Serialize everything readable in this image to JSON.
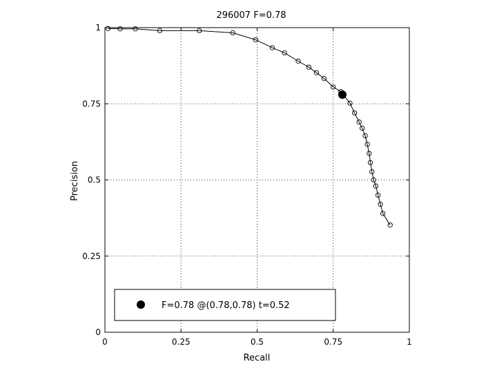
{
  "chart_data": {
    "type": "line",
    "title": "296007 F=0.78",
    "xlabel": "Recall",
    "ylabel": "Precision",
    "xlim": [
      0,
      1
    ],
    "ylim": [
      0,
      1
    ],
    "grid": true,
    "x_ticks": [
      0,
      0.25,
      0.5,
      0.75,
      1
    ],
    "y_ticks": [
      0,
      0.25,
      0.5,
      0.75,
      1
    ],
    "x_tick_labels": [
      "0",
      "0.25",
      "0.5",
      "0.75",
      "1"
    ],
    "y_tick_labels": [
      "0",
      "0.25",
      "0.5",
      "0.75",
      "1"
    ],
    "series": [
      {
        "marker": "open-circle",
        "x": [
          0.01,
          0.05,
          0.1,
          0.18,
          0.31,
          0.42,
          0.495,
          0.55,
          0.59,
          0.635,
          0.67,
          0.695,
          0.72,
          0.75,
          0.775,
          0.805,
          0.82,
          0.835,
          0.845,
          0.855,
          0.862,
          0.868,
          0.872,
          0.877,
          0.883,
          0.89,
          0.897,
          0.905,
          0.913,
          0.937
        ],
        "y": [
          0.997,
          0.996,
          0.996,
          0.99,
          0.99,
          0.983,
          0.96,
          0.934,
          0.917,
          0.89,
          0.87,
          0.852,
          0.833,
          0.805,
          0.79,
          0.752,
          0.72,
          0.69,
          0.67,
          0.645,
          0.617,
          0.587,
          0.557,
          0.527,
          0.5,
          0.48,
          0.45,
          0.42,
          0.39,
          0.352
        ]
      }
    ],
    "highlight": {
      "x": 0.78,
      "y": 0.78,
      "marker": "filled-circle"
    },
    "legend": {
      "text": "F=0.78 @(0.78,0.78) t=0.52",
      "position": "bottom-left"
    }
  }
}
